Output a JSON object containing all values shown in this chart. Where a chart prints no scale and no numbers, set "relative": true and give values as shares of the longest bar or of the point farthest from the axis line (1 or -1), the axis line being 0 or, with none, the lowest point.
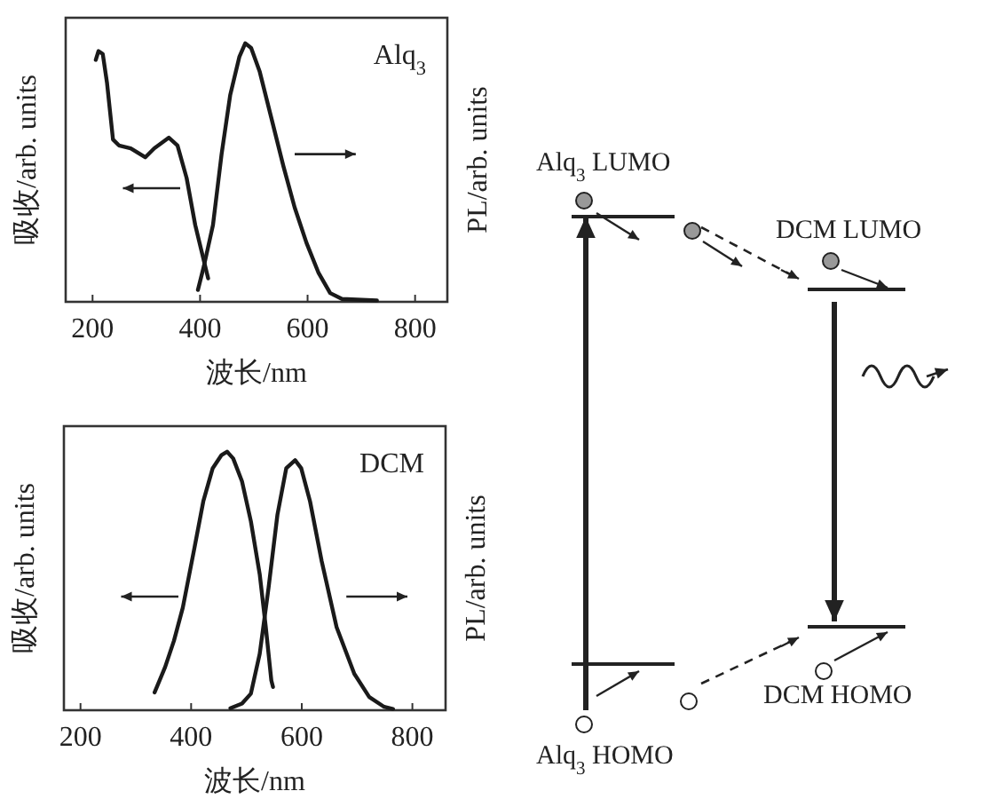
{
  "chart_data": [
    {
      "type": "line",
      "xlabel": "波长/nm",
      "ylabel": "吸收/arb. units",
      "y2label": "PL/arb. units",
      "relative": true,
      "tick_labels": "x",
      "xlim": [
        150,
        860
      ],
      "xticks": [
        200,
        400,
        600,
        800
      ],
      "annotations": [
        "Alq$_{3}$"
      ],
      "series": [
        {
          "color": "#1a1a1a",
          "x": [
            206,
            211,
            219,
            227,
            238,
            249,
            271,
            298,
            315,
            342,
            358,
            375,
            391,
            407,
            415
          ],
          "values": [
            0.936,
            0.97,
            0.959,
            0.845,
            0.628,
            0.605,
            0.594,
            0.559,
            0.594,
            0.635,
            0.605,
            0.479,
            0.297,
            0.16,
            0.091
          ]
        },
        {
          "color": "#1a1a1a",
          "x": [
            396,
            407,
            424,
            440,
            456,
            473,
            484,
            495,
            511,
            533,
            555,
            576,
            598,
            620,
            642,
            664,
            729
          ],
          "values": [
            0.046,
            0.137,
            0.297,
            0.571,
            0.799,
            0.947,
            1.0,
            0.982,
            0.89,
            0.708,
            0.525,
            0.365,
            0.228,
            0.114,
            0.034,
            0.011,
            0.005
          ]
        }
      ]
    },
    {
      "type": "line",
      "xlabel": "波长/nm",
      "ylabel": "吸收/arb. units",
      "y2label": "PL/arb. units",
      "relative": true,
      "tick_labels": "x",
      "xlim": [
        170,
        860
      ],
      "xticks": [
        200,
        400,
        600,
        800
      ],
      "annotations": [
        "DCM"
      ],
      "series": [
        {
          "color": "#1a1a1a",
          "x": [
            334,
            353,
            369,
            385,
            406,
            422,
            439,
            455,
            465,
            476,
            492,
            508,
            524,
            535,
            545,
            548
          ],
          "values": [
            0.069,
            0.167,
            0.269,
            0.397,
            0.628,
            0.808,
            0.936,
            0.987,
            1.0,
            0.974,
            0.885,
            0.731,
            0.526,
            0.321,
            0.115,
            0.09
          ]
        },
        {
          "color": "#1a1a1a",
          "x": [
            471,
            492,
            508,
            524,
            540,
            556,
            572,
            588,
            599,
            615,
            636,
            663,
            695,
            722,
            749,
            765
          ],
          "values": [
            0.008,
            0.026,
            0.064,
            0.218,
            0.474,
            0.756,
            0.936,
            0.967,
            0.936,
            0.808,
            0.577,
            0.321,
            0.141,
            0.051,
            0.013,
            0.005
          ]
        }
      ]
    },
    {
      "type": "other",
      "annotations": [
        "Alq$_{3}$ LUMO",
        "DCM LUMO",
        "DCM HOMO",
        "Alq$_{3}$ HOMO"
      ]
    }
  ]
}
